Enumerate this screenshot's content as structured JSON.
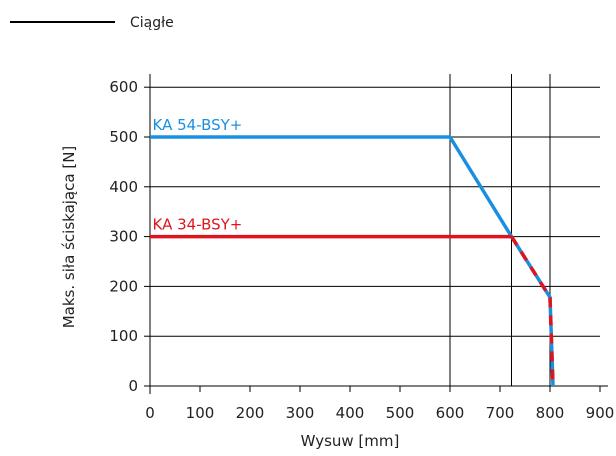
{
  "legend": {
    "line_label": "Ciągłe"
  },
  "chart_data": {
    "type": "line",
    "xlabel": "Wysuw [mm]",
    "ylabel": "Maks. siła ściskająca [N]",
    "xlim": [
      0,
      900
    ],
    "ylim": [
      0,
      600
    ],
    "x_ticks": [
      0,
      100,
      200,
      300,
      400,
      500,
      600,
      700,
      800,
      900
    ],
    "y_ticks": [
      0,
      100,
      200,
      300,
      400,
      500,
      600
    ],
    "x_tick_labels": [
      "0",
      "100",
      "200",
      "300",
      "400",
      "500",
      "600",
      "700",
      "800",
      "900"
    ],
    "y_tick_labels": [
      "0",
      "100",
      "200",
      "300",
      "400",
      "500",
      "600"
    ],
    "vertical_reference_lines": [
      600,
      723,
      800
    ],
    "grid": "horizontal",
    "series": [
      {
        "name": "KA 54-BSY+",
        "color": "#1a8fe0",
        "x": [
          0,
          600,
          723,
          800,
          806
        ],
        "y": [
          500,
          500,
          300,
          178,
          0
        ]
      },
      {
        "name": "KA 34-BSY+",
        "color": "#e0141e",
        "x": [
          0,
          723,
          800,
          806
        ],
        "y": [
          300,
          300,
          178,
          0
        ]
      }
    ]
  }
}
